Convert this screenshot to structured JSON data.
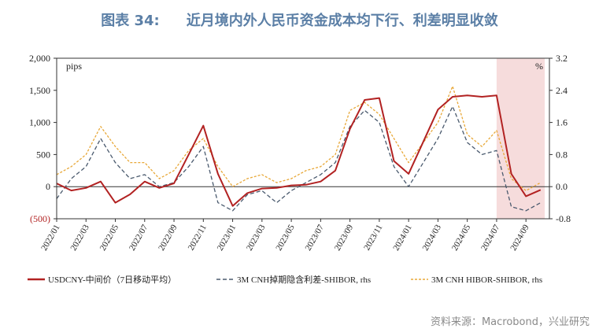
{
  "header": {
    "figure_no": "图表 34:",
    "title": "近月境内外人民币资金成本均下行、利差明显收敛"
  },
  "footer": {
    "source": "资料来源：Macrobond，兴业研究"
  },
  "chart_data": {
    "type": "line",
    "title": "近月境内外人民币资金成本均下行、利差明显收敛",
    "unit_left": "pips",
    "unit_right": "%",
    "ylim_left": [
      -500,
      2000
    ],
    "ylim_right": [
      -0.8,
      3.2
    ],
    "yticks_left": [
      "2,000",
      "1,500",
      "1,000",
      "500",
      "0",
      "(500)"
    ],
    "yticks_right": [
      "3.2",
      "2.4",
      "1.6",
      "0.8",
      "0.0",
      "-0.8"
    ],
    "xticks": [
      "2022/01",
      "2022/03",
      "2022/05",
      "2022/07",
      "2022/09",
      "2022/11",
      "2023/01",
      "2023/03",
      "2023/05",
      "2023/07",
      "2023/09",
      "2023/11",
      "2024/01",
      "2024/03",
      "2024/05",
      "2024/07",
      "2024/09"
    ],
    "highlight": {
      "from": "2024/07",
      "to": "2024/10",
      "color": "#f6dcdc"
    },
    "legend_position": "bottom",
    "series": [
      {
        "name": "USDCNY-中间价（7日移动平均）",
        "axis": "left",
        "color": "#b22222",
        "style": "solid",
        "x": [
          "2022/01",
          "2022/02",
          "2022/03",
          "2022/04",
          "2022/05",
          "2022/06",
          "2022/07",
          "2022/08",
          "2022/09",
          "2022/10",
          "2022/11",
          "2022/12",
          "2023/01",
          "2023/02",
          "2023/03",
          "2023/04",
          "2023/05",
          "2023/06",
          "2023/07",
          "2023/08",
          "2023/09",
          "2023/10",
          "2023/11",
          "2023/12",
          "2024/01",
          "2024/02",
          "2024/03",
          "2024/04",
          "2024/05",
          "2024/06",
          "2024/07",
          "2024/08",
          "2024/09",
          "2024/10"
        ],
        "values": [
          50,
          -60,
          -20,
          80,
          -250,
          -120,
          80,
          -20,
          50,
          500,
          950,
          200,
          -300,
          -100,
          -30,
          -20,
          20,
          30,
          80,
          250,
          900,
          1350,
          1380,
          400,
          200,
          700,
          1200,
          1400,
          1420,
          1400,
          1420,
          200,
          -150,
          -50
        ]
      },
      {
        "name": "3M CNH掉期隐含利差-SHIBOR, rhs",
        "axis": "right",
        "color": "#4a5a6e",
        "style": "dashed",
        "x": [
          "2022/01",
          "2022/02",
          "2022/03",
          "2022/04",
          "2022/05",
          "2022/06",
          "2022/07",
          "2022/08",
          "2022/09",
          "2022/10",
          "2022/11",
          "2022/12",
          "2023/01",
          "2023/02",
          "2023/03",
          "2023/04",
          "2023/05",
          "2023/06",
          "2023/07",
          "2023/08",
          "2023/09",
          "2023/10",
          "2023/11",
          "2023/12",
          "2024/01",
          "2024/02",
          "2024/03",
          "2024/04",
          "2024/05",
          "2024/06",
          "2024/07",
          "2024/08",
          "2024/09",
          "2024/10"
        ],
        "values": [
          -0.3,
          0.2,
          0.5,
          1.2,
          0.6,
          0.2,
          0.3,
          0.0,
          0.1,
          0.5,
          1.0,
          -0.4,
          -0.6,
          -0.2,
          -0.1,
          -0.4,
          -0.1,
          0.1,
          0.3,
          0.6,
          1.5,
          1.9,
          1.6,
          0.5,
          0.0,
          0.6,
          1.2,
          2.0,
          1.1,
          0.8,
          0.9,
          -0.5,
          -0.6,
          -0.4
        ]
      },
      {
        "name": "3M CNH HIBOR-SHIBOR, rhs",
        "axis": "right",
        "color": "#e8a838",
        "style": "dashed",
        "x": [
          "2022/01",
          "2022/02",
          "2022/03",
          "2022/04",
          "2022/05",
          "2022/06",
          "2022/07",
          "2022/08",
          "2022/09",
          "2022/10",
          "2022/11",
          "2022/12",
          "2023/01",
          "2023/02",
          "2023/03",
          "2023/04",
          "2023/05",
          "2023/06",
          "2023/07",
          "2023/08",
          "2023/09",
          "2023/10",
          "2023/11",
          "2023/12",
          "2024/01",
          "2024/02",
          "2024/03",
          "2024/04",
          "2024/05",
          "2024/06",
          "2024/07",
          "2024/08",
          "2024/09",
          "2024/10"
        ],
        "values": [
          0.3,
          0.5,
          0.8,
          1.5,
          1.0,
          0.6,
          0.6,
          0.2,
          0.4,
          0.9,
          1.2,
          0.5,
          0.0,
          0.2,
          0.3,
          0.1,
          0.2,
          0.4,
          0.5,
          0.8,
          1.9,
          2.1,
          1.8,
          1.2,
          0.6,
          1.1,
          1.6,
          2.5,
          1.3,
          1.0,
          1.4,
          0.2,
          -0.1,
          0.1
        ]
      }
    ]
  }
}
